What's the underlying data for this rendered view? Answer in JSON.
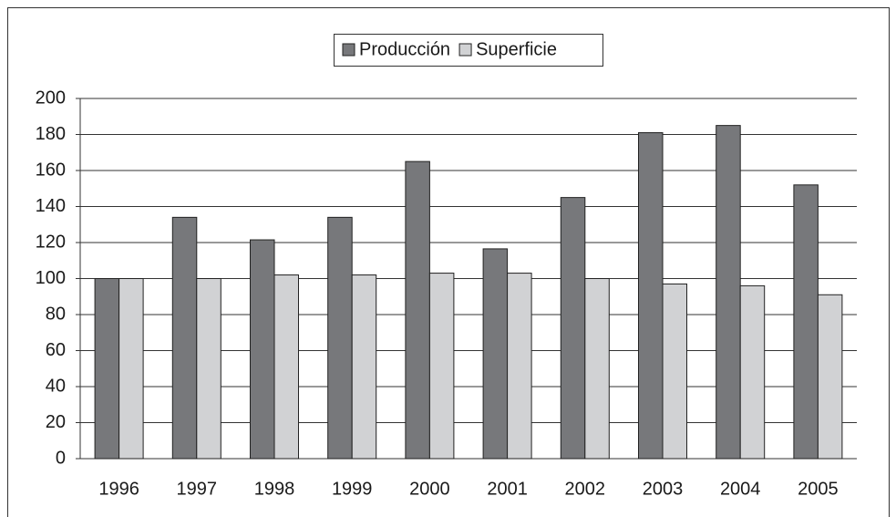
{
  "chart_data": {
    "type": "bar",
    "categories": [
      "1996",
      "1997",
      "1998",
      "1999",
      "2000",
      "2001",
      "2002",
      "2003",
      "2004",
      "2005"
    ],
    "series": [
      {
        "name": "Producción",
        "color": "#77787b",
        "values": [
          100,
          134,
          121.5,
          134,
          165,
          116.5,
          145,
          181,
          185,
          152
        ]
      },
      {
        "name": "Superficie",
        "color": "#d1d2d4",
        "values": [
          100,
          100,
          102,
          102,
          103,
          103,
          100,
          97,
          96,
          91
        ]
      }
    ],
    "ylim": [
      0,
      200
    ],
    "yticks": [
      0,
      20,
      40,
      60,
      80,
      100,
      120,
      140,
      160,
      180,
      200
    ],
    "grid": true,
    "legend": "top"
  }
}
